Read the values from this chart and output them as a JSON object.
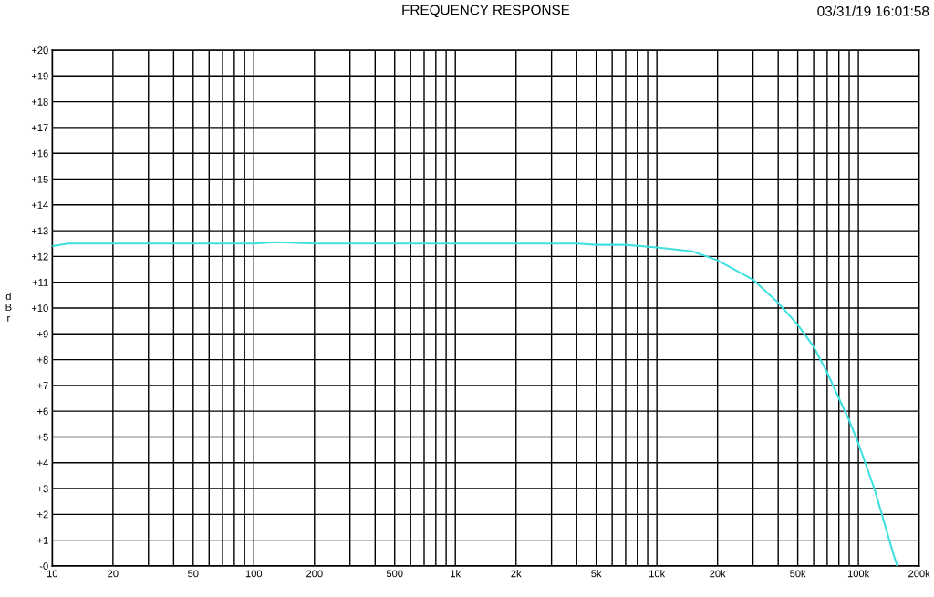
{
  "chart_data": {
    "type": "line",
    "title": "FREQUENCY RESPONSE",
    "ylabel": "dBr",
    "annotations": [
      "03/31/19 16:01:58"
    ],
    "log": "x",
    "grid": true,
    "marker": "none",
    "line_style": "solid",
    "xlim": [
      10,
      200000
    ],
    "ylim": [
      0,
      20
    ],
    "xticks": [
      10,
      20,
      {
        "value": 30,
        "label": null
      },
      {
        "value": 40,
        "label": null
      },
      50,
      {
        "value": 60,
        "label": null
      },
      {
        "value": 70,
        "label": null
      },
      {
        "value": 80,
        "label": null
      },
      {
        "value": 90,
        "label": null
      },
      100,
      200,
      {
        "value": 300,
        "label": null
      },
      {
        "value": 400,
        "label": null
      },
      500,
      {
        "value": 600,
        "label": null
      },
      {
        "value": 700,
        "label": null
      },
      {
        "value": 800,
        "label": null
      },
      {
        "value": 900,
        "label": null
      },
      {
        "value": 1000,
        "label": "1k"
      },
      {
        "value": 2000,
        "label": "2k"
      },
      {
        "value": 3000,
        "label": null
      },
      {
        "value": 4000,
        "label": null
      },
      {
        "value": 5000,
        "label": "5k"
      },
      {
        "value": 6000,
        "label": null
      },
      {
        "value": 7000,
        "label": null
      },
      {
        "value": 8000,
        "label": null
      },
      {
        "value": 9000,
        "label": null
      },
      {
        "value": 10000,
        "label": "10k"
      },
      {
        "value": 20000,
        "label": "20k"
      },
      {
        "value": 30000,
        "label": null
      },
      {
        "value": 40000,
        "label": null
      },
      {
        "value": 50000,
        "label": "50k"
      },
      {
        "value": 60000,
        "label": null
      },
      {
        "value": 70000,
        "label": null
      },
      {
        "value": 80000,
        "label": null
      },
      {
        "value": 90000,
        "label": null
      },
      {
        "value": 100000,
        "label": "100k"
      },
      {
        "value": 200000,
        "label": "200k"
      }
    ],
    "yticks": [
      {
        "value": 0,
        "label": "-0"
      },
      {
        "value": 1,
        "label": "+1"
      },
      {
        "value": 2,
        "label": "+2"
      },
      {
        "value": 3,
        "label": "+3"
      },
      {
        "value": 4,
        "label": "+4"
      },
      {
        "value": 5,
        "label": "+5"
      },
      {
        "value": 6,
        "label": "+6"
      },
      {
        "value": 7,
        "label": "+7"
      },
      {
        "value": 8,
        "label": "+8"
      },
      {
        "value": 9,
        "label": "+9"
      },
      {
        "value": 10,
        "label": "+10"
      },
      {
        "value": 11,
        "label": "+11"
      },
      {
        "value": 12,
        "label": "+12"
      },
      {
        "value": 13,
        "label": "+13"
      },
      {
        "value": 14,
        "label": "+14"
      },
      {
        "value": 15,
        "label": "+15"
      },
      {
        "value": 16,
        "label": "+16"
      },
      {
        "value": 17,
        "label": "+17"
      },
      {
        "value": 18,
        "label": "+18"
      },
      {
        "value": 19,
        "label": "+19"
      },
      {
        "value": 20,
        "label": "+20"
      }
    ],
    "x": [
      10,
      12,
      20,
      50,
      100,
      130,
      200,
      500,
      1000,
      2000,
      4000,
      5000,
      7000,
      10000,
      15000,
      20000,
      30000,
      40000,
      50000,
      60000,
      70000,
      80000,
      90000,
      100000,
      120000,
      150000,
      156000
    ],
    "series": [
      {
        "color": "#40e0e0",
        "values": [
          12.4,
          12.5,
          12.5,
          12.5,
          12.5,
          12.55,
          12.5,
          12.5,
          12.5,
          12.5,
          12.5,
          12.45,
          12.45,
          12.35,
          12.2,
          11.85,
          11.1,
          10.2,
          9.35,
          8.5,
          7.5,
          6.5,
          5.65,
          4.75,
          3.0,
          0.4,
          0
        ]
      }
    ]
  }
}
